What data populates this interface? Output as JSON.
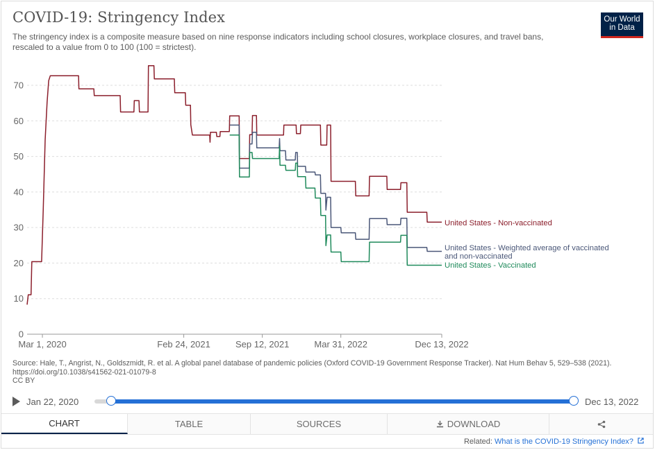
{
  "title": "COVID-19: Stringency Index",
  "subtitle": "The stringency index is a composite measure based on nine response indicators including school closures, workplace closures, and travel bans, rescaled to a value from 0 to 100 (100 = strictest).",
  "logo": {
    "line1": "Our World",
    "line2": "in Data"
  },
  "source": "Source: Hale, T., Angrist, N., Goldszmidt, R. et al. A global panel database of pandemic policies (Oxford COVID-19 Government Response Tracker). Nat Hum Behav 5, 529–538 (2021). https://doi.org/10.1038/s41562-021-01079-8",
  "license": "CC BY",
  "timeline": {
    "start": "Jan 22, 2020",
    "end": "Dec 13, 2022"
  },
  "tabs": [
    {
      "label": "CHART"
    },
    {
      "label": "TABLE"
    },
    {
      "label": "SOURCES"
    },
    {
      "label": "DOWNLOAD"
    },
    {
      "label": ""
    }
  ],
  "related": {
    "prefix": "Related: ",
    "link": "What is the COVID-19 Stringency Index?"
  },
  "colors": {
    "nonvax": "#8b1e2b",
    "weighted": "#4a5778",
    "vax": "#1f8a5b",
    "accent": "#2470d6"
  },
  "chart_data": {
    "type": "line",
    "x_type": "date",
    "xlim": [
      "2020-01-22",
      "2022-12-13"
    ],
    "ylim": [
      0,
      70
    ],
    "y_ticks": [
      0,
      10,
      20,
      30,
      40,
      50,
      60,
      70
    ],
    "x_ticks": [
      {
        "date": "2020-03-01",
        "label": "Mar 1, 2020"
      },
      {
        "date": "2021-02-24",
        "label": "Feb 24, 2021"
      },
      {
        "date": "2021-09-12",
        "label": "Sep 12, 2021"
      },
      {
        "date": "2022-03-31",
        "label": "Mar 31, 2022"
      },
      {
        "date": "2022-12-13",
        "label": "Dec 13, 2022"
      }
    ],
    "grid": true,
    "legend": "right",
    "series": [
      {
        "name": "United States - Non-vaccinated",
        "color": "#8b1e2b",
        "points": [
          [
            "2020-01-22",
            8.3
          ],
          [
            "2020-01-25",
            11.1
          ],
          [
            "2020-02-01",
            11.1
          ],
          [
            "2020-02-03",
            20.4
          ],
          [
            "2020-02-28",
            20.4
          ],
          [
            "2020-03-03",
            34.7
          ],
          [
            "2020-03-08",
            54.6
          ],
          [
            "2020-03-13",
            65.2
          ],
          [
            "2020-03-17",
            71.3
          ],
          [
            "2020-03-21",
            72.7
          ],
          [
            "2020-06-01",
            72.7
          ],
          [
            "2020-06-02",
            69.0
          ],
          [
            "2020-07-10",
            69.0
          ],
          [
            "2020-07-11",
            67.1
          ],
          [
            "2020-09-15",
            67.1
          ],
          [
            "2020-09-16",
            62.5
          ],
          [
            "2020-10-20",
            62.5
          ],
          [
            "2020-10-21",
            65.7
          ],
          [
            "2020-11-02",
            65.7
          ],
          [
            "2020-11-03",
            62.5
          ],
          [
            "2020-11-25",
            62.5
          ],
          [
            "2020-11-26",
            75.5
          ],
          [
            "2020-12-10",
            75.5
          ],
          [
            "2020-12-11",
            71.8
          ],
          [
            "2021-01-31",
            71.8
          ],
          [
            "2021-02-01",
            67.9
          ],
          [
            "2021-02-28",
            67.9
          ],
          [
            "2021-03-01",
            64.4
          ],
          [
            "2021-03-13",
            64.4
          ],
          [
            "2021-03-14",
            58.9
          ],
          [
            "2021-03-18",
            56.0
          ],
          [
            "2021-05-01",
            56.0
          ],
          [
            "2021-05-02",
            54.0
          ],
          [
            "2021-05-03",
            56.8
          ],
          [
            "2021-05-18",
            56.8
          ],
          [
            "2021-05-19",
            55.6
          ],
          [
            "2021-05-27",
            55.6
          ],
          [
            "2021-05-28",
            57.0
          ],
          [
            "2021-06-20",
            57.0
          ],
          [
            "2021-06-21",
            61.4
          ],
          [
            "2021-07-15",
            61.4
          ],
          [
            "2021-07-16",
            49.4
          ],
          [
            "2021-08-10",
            49.4
          ],
          [
            "2021-08-11",
            56.1
          ],
          [
            "2021-08-17",
            56.1
          ],
          [
            "2021-08-18",
            61.5
          ],
          [
            "2021-08-28",
            61.5
          ],
          [
            "2021-08-29",
            56.0
          ],
          [
            "2021-11-05",
            56.0
          ],
          [
            "2021-11-06",
            58.8
          ],
          [
            "2021-12-07",
            58.8
          ],
          [
            "2021-12-08",
            56.4
          ],
          [
            "2021-12-18",
            56.4
          ],
          [
            "2021-12-19",
            58.8
          ],
          [
            "2022-02-07",
            58.8
          ],
          [
            "2022-02-08",
            53.2
          ],
          [
            "2022-02-23",
            53.2
          ],
          [
            "2022-02-24",
            58.8
          ],
          [
            "2022-03-05",
            58.8
          ],
          [
            "2022-03-06",
            43.0
          ],
          [
            "2022-05-07",
            43.0
          ],
          [
            "2022-05-08",
            38.9
          ],
          [
            "2022-06-11",
            38.9
          ],
          [
            "2022-06-12",
            44.4
          ],
          [
            "2022-07-26",
            44.4
          ],
          [
            "2022-07-27",
            40.7
          ],
          [
            "2022-08-30",
            40.7
          ],
          [
            "2022-08-31",
            42.6
          ],
          [
            "2022-09-15",
            42.6
          ],
          [
            "2022-09-16",
            34.3
          ],
          [
            "2022-11-05",
            34.3
          ],
          [
            "2022-11-06",
            31.5
          ],
          [
            "2022-12-13",
            31.5
          ]
        ]
      },
      {
        "name": "United States - Weighted average of vaccinated and non-vaccinated",
        "color": "#4a5778",
        "points": [
          [
            "2021-06-21",
            58.8
          ],
          [
            "2021-07-15",
            58.8
          ],
          [
            "2021-07-16",
            46.7
          ],
          [
            "2021-08-10",
            46.7
          ],
          [
            "2021-08-11",
            53.5
          ],
          [
            "2021-08-17",
            53.5
          ],
          [
            "2021-08-18",
            56.8
          ],
          [
            "2021-08-28",
            56.8
          ],
          [
            "2021-08-29",
            52.4
          ],
          [
            "2021-10-25",
            52.4
          ],
          [
            "2021-10-26",
            55.0
          ],
          [
            "2021-10-27",
            51.6
          ],
          [
            "2021-11-10",
            51.6
          ],
          [
            "2021-11-11",
            49.0
          ],
          [
            "2021-12-05",
            49.0
          ],
          [
            "2021-12-06",
            51.1
          ],
          [
            "2021-12-10",
            51.1
          ],
          [
            "2021-12-11",
            47.2
          ],
          [
            "2021-12-31",
            47.2
          ],
          [
            "2022-01-01",
            45.6
          ],
          [
            "2022-01-24",
            45.6
          ],
          [
            "2022-01-25",
            44.8
          ],
          [
            "2022-02-07",
            44.8
          ],
          [
            "2022-02-08",
            39.6
          ],
          [
            "2022-02-20",
            39.6
          ],
          [
            "2022-02-21",
            34.9
          ],
          [
            "2022-02-24",
            38.5
          ],
          [
            "2022-03-05",
            38.5
          ],
          [
            "2022-03-06",
            30.0
          ],
          [
            "2022-03-31",
            30.0
          ],
          [
            "2022-04-01",
            28.5
          ],
          [
            "2022-05-07",
            28.5
          ],
          [
            "2022-05-08",
            26.7
          ],
          [
            "2022-06-11",
            26.7
          ],
          [
            "2022-06-12",
            32.5
          ],
          [
            "2022-07-26",
            32.5
          ],
          [
            "2022-07-27",
            30.8
          ],
          [
            "2022-08-30",
            30.8
          ],
          [
            "2022-08-31",
            32.6
          ],
          [
            "2022-09-15",
            32.6
          ],
          [
            "2022-09-16",
            24.4
          ],
          [
            "2022-11-05",
            24.4
          ],
          [
            "2022-11-06",
            23.3
          ],
          [
            "2022-12-13",
            23.3
          ]
        ]
      },
      {
        "name": "United States - Vaccinated",
        "color": "#1f8a5b",
        "points": [
          [
            "2021-06-21",
            56.0
          ],
          [
            "2021-07-15",
            56.0
          ],
          [
            "2021-07-16",
            44.2
          ],
          [
            "2021-08-10",
            44.2
          ],
          [
            "2021-08-11",
            51.1
          ],
          [
            "2021-08-17",
            51.1
          ],
          [
            "2021-08-18",
            49.4
          ],
          [
            "2021-10-25",
            49.4
          ],
          [
            "2021-10-26",
            52.9
          ],
          [
            "2021-10-27",
            47.5
          ],
          [
            "2021-11-10",
            47.5
          ],
          [
            "2021-11-11",
            46.1
          ],
          [
            "2021-12-05",
            46.1
          ],
          [
            "2021-12-06",
            48.1
          ],
          [
            "2021-12-10",
            48.1
          ],
          [
            "2021-12-11",
            44.3
          ],
          [
            "2021-12-31",
            44.3
          ],
          [
            "2022-01-01",
            41.1
          ],
          [
            "2022-01-24",
            41.1
          ],
          [
            "2022-01-25",
            38.3
          ],
          [
            "2022-02-07",
            38.3
          ],
          [
            "2022-02-08",
            33.4
          ],
          [
            "2022-02-20",
            33.4
          ],
          [
            "2022-02-21",
            24.9
          ],
          [
            "2022-02-24",
            27.9
          ],
          [
            "2022-03-05",
            27.9
          ],
          [
            "2022-03-06",
            23.1
          ],
          [
            "2022-03-31",
            23.1
          ],
          [
            "2022-04-01",
            20.4
          ],
          [
            "2022-05-07",
            20.4
          ],
          [
            "2022-05-08",
            20.4
          ],
          [
            "2022-06-11",
            20.4
          ],
          [
            "2022-06-12",
            25.9
          ],
          [
            "2022-08-30",
            25.9
          ],
          [
            "2022-08-31",
            27.8
          ],
          [
            "2022-09-15",
            27.8
          ],
          [
            "2022-09-16",
            19.4
          ],
          [
            "2022-12-13",
            19.4
          ]
        ]
      }
    ],
    "labels": [
      {
        "lines": [
          "United States - Non-vaccinated"
        ],
        "color": "#8b1e2b"
      },
      {
        "lines": [
          "United States - Weighted average of vaccinated",
          "and non-vaccinated"
        ],
        "color": "#4a5778"
      },
      {
        "lines": [
          "United States - Vaccinated"
        ],
        "color": "#1f8a5b"
      }
    ]
  }
}
